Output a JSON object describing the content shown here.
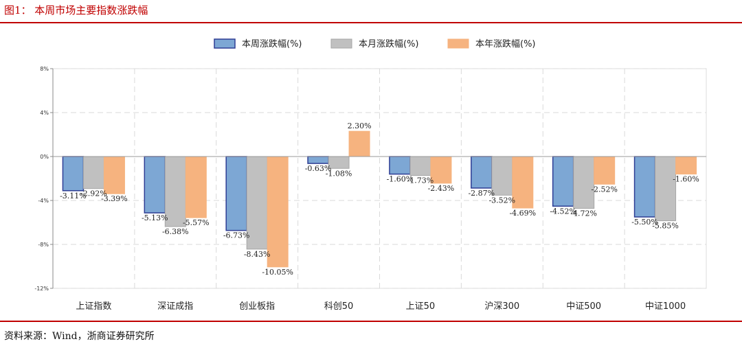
{
  "figure_title": "图1：  本周市场主要指数涨跌幅",
  "source_note": "资料来源：Wind，浙商证券研究所",
  "chart_data": {
    "type": "bar",
    "categories": [
      "上证指数",
      "深证成指",
      "创业板指",
      "科创50",
      "上证50",
      "沪深300",
      "中证500",
      "中证1000"
    ],
    "series": [
      {
        "name": "本周涨跌幅(%)",
        "values": [
          -3.11,
          -5.13,
          -6.73,
          -0.63,
          -1.6,
          -2.87,
          -4.52,
          -5.5
        ],
        "labels": [
          "-3.11%",
          "-5.13%",
          "-6.73%",
          "-0.63%",
          "-1.60%",
          "-2.87%",
          "-4.52%",
          "-5.50%"
        ],
        "fill": "#7da7d4",
        "stroke": "#2e3d94"
      },
      {
        "name": "本月涨跌幅(%)",
        "values": [
          -2.92,
          -6.38,
          -8.43,
          -1.08,
          -1.73,
          -3.52,
          -4.72,
          -5.85
        ],
        "labels": [
          "-2.92%",
          "-6.38%",
          "-8.43%",
          "-1.08%",
          "-1.73%",
          "-3.52%",
          "-4.72%",
          "-5.85%"
        ],
        "fill": "#c0c0c0",
        "stroke": "#a6a6a6"
      },
      {
        "name": "本年涨跌幅(%)",
        "values": [
          -3.39,
          -5.57,
          -10.05,
          2.3,
          -2.43,
          -4.69,
          -2.52,
          -1.6
        ],
        "labels": [
          "-3.39%",
          "-5.57%",
          "-10.05%",
          "2.30%",
          "-2.43%",
          "-4.69%",
          "-2.52%",
          "-1.60%"
        ],
        "fill": "#f6b37f",
        "stroke": "#f6b37f"
      }
    ],
    "yticks": [
      8,
      4,
      0,
      -4,
      -8,
      -12
    ],
    "ytick_labels": [
      "8%",
      "4%",
      "0%",
      "-4%",
      "-8%",
      "-12%"
    ],
    "ylim": [
      -12,
      8
    ],
    "grid": true,
    "legend_position": "top-center"
  }
}
